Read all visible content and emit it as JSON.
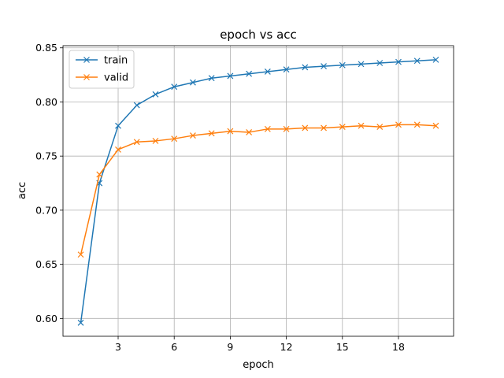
{
  "chart_data": {
    "type": "line",
    "title": "epoch vs acc",
    "xlabel": "epoch",
    "ylabel": "acc",
    "xlim": [
      0.05,
      20.95
    ],
    "ylim": [
      0.5835,
      0.852
    ],
    "x_ticks": [
      3,
      6,
      9,
      12,
      15,
      18
    ],
    "y_ticks": [
      0.6,
      0.65,
      0.7,
      0.75,
      0.8,
      0.85
    ],
    "grid": true,
    "legend_position": "top-left",
    "x": [
      1,
      2,
      3,
      4,
      5,
      6,
      7,
      8,
      9,
      10,
      11,
      12,
      13,
      14,
      15,
      16,
      17,
      18,
      19,
      20
    ],
    "series": [
      {
        "name": "train",
        "color": "#1f77b4",
        "marker": "x",
        "values": [
          0.596,
          0.725,
          0.778,
          0.797,
          0.807,
          0.814,
          0.818,
          0.822,
          0.824,
          0.826,
          0.828,
          0.83,
          0.832,
          0.833,
          0.834,
          0.835,
          0.836,
          0.837,
          0.838,
          0.839
        ]
      },
      {
        "name": "valid",
        "color": "#ff7f0e",
        "marker": "x",
        "values": [
          0.659,
          0.733,
          0.756,
          0.763,
          0.764,
          0.766,
          0.769,
          0.771,
          0.773,
          0.772,
          0.775,
          0.775,
          0.776,
          0.776,
          0.777,
          0.778,
          0.777,
          0.779,
          0.779,
          0.778
        ]
      }
    ]
  }
}
